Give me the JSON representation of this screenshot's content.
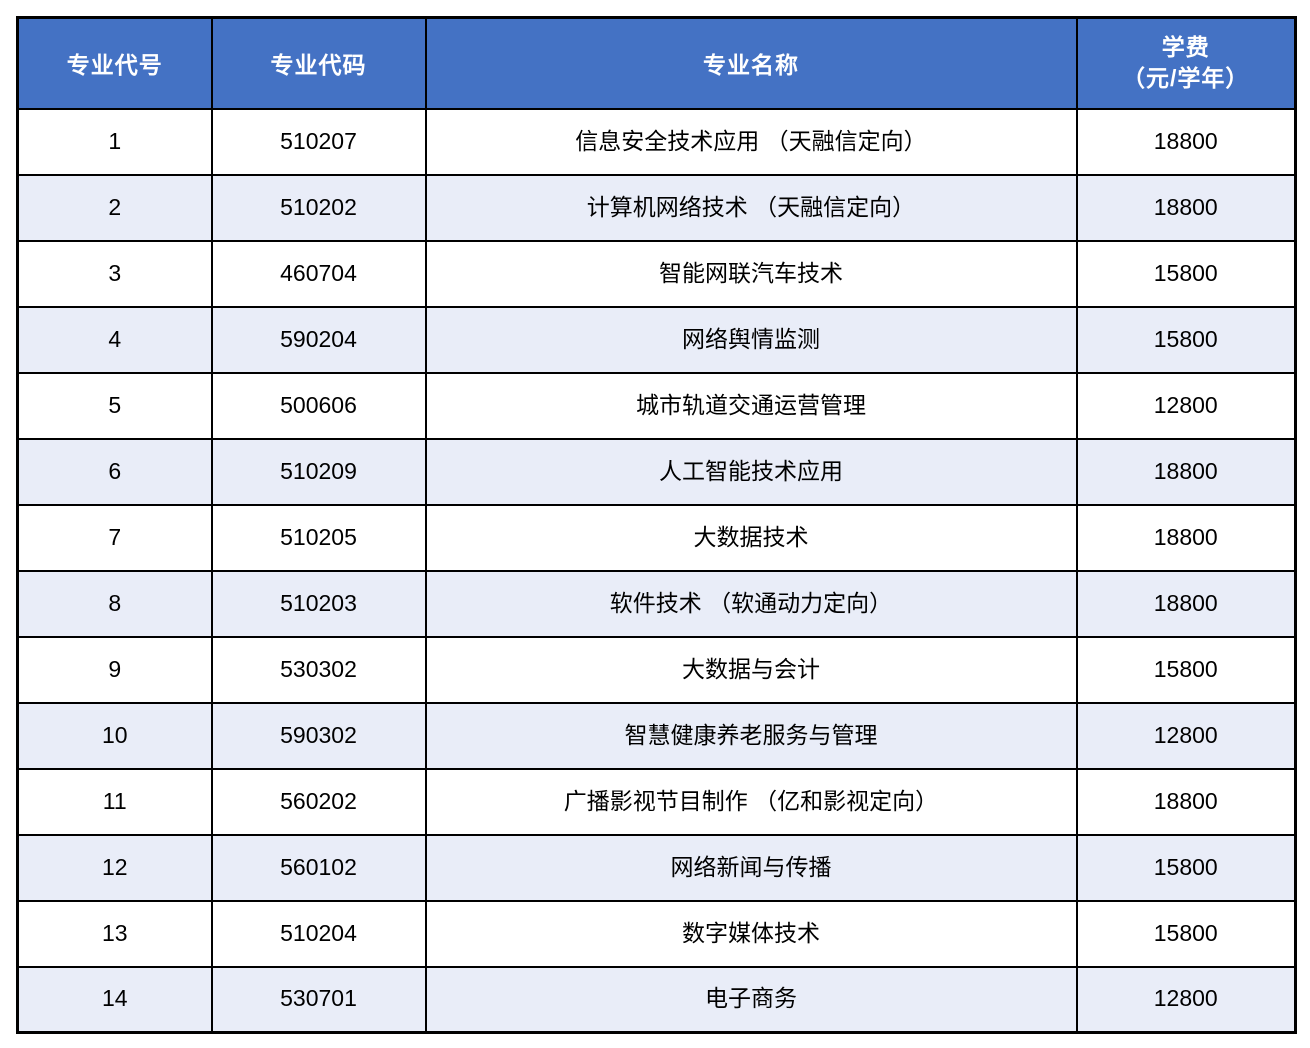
{
  "table": {
    "columns": [
      {
        "key": "no",
        "label": "专业代号"
      },
      {
        "key": "code",
        "label": "专业代码"
      },
      {
        "key": "name",
        "label": "专业名称"
      },
      {
        "key": "fee",
        "label": "学费",
        "label_line2": "（元/学年）"
      }
    ],
    "rows": [
      {
        "no": "1",
        "code": "510207",
        "name": "信息安全技术应用 （天融信定向）",
        "fee": "18800"
      },
      {
        "no": "2",
        "code": "510202",
        "name": "计算机网络技术 （天融信定向）",
        "fee": "18800"
      },
      {
        "no": "3",
        "code": "460704",
        "name": "智能网联汽车技术",
        "fee": "15800"
      },
      {
        "no": "4",
        "code": "590204",
        "name": "网络舆情监测",
        "fee": "15800"
      },
      {
        "no": "5",
        "code": "500606",
        "name": "城市轨道交通运营管理",
        "fee": "12800"
      },
      {
        "no": "6",
        "code": "510209",
        "name": "人工智能技术应用",
        "fee": "18800"
      },
      {
        "no": "7",
        "code": "510205",
        "name": "大数据技术",
        "fee": "18800"
      },
      {
        "no": "8",
        "code": "510203",
        "name": "软件技术 （软通动力定向）",
        "fee": "18800"
      },
      {
        "no": "9",
        "code": "530302",
        "name": "大数据与会计",
        "fee": "15800"
      },
      {
        "no": "10",
        "code": "590302",
        "name": "智慧健康养老服务与管理",
        "fee": "12800"
      },
      {
        "no": "11",
        "code": "560202",
        "name": "广播影视节目制作 （亿和影视定向）",
        "fee": "18800"
      },
      {
        "no": "12",
        "code": "560102",
        "name": "网络新闻与传播",
        "fee": "15800"
      },
      {
        "no": "13",
        "code": "510204",
        "name": "数字媒体技术",
        "fee": "15800"
      },
      {
        "no": "14",
        "code": "530701",
        "name": "电子商务",
        "fee": "12800"
      }
    ]
  },
  "colors": {
    "header_bg": "#4472C4",
    "header_text": "#FFFFFF",
    "band_bg": "#E9EDF8",
    "row_bg": "#FFFFFF",
    "border": "#000000",
    "cell_text": "#000000"
  }
}
